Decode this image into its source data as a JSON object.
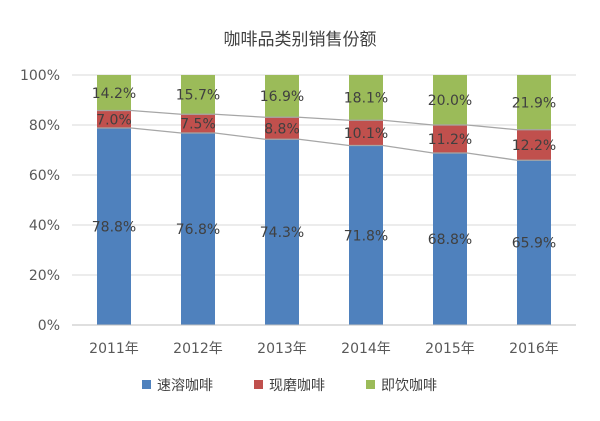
{
  "chart_data": {
    "type": "bar",
    "stacked": true,
    "title": "咖啡品类别销售份额",
    "categories": [
      "2011年",
      "2012年",
      "2013年",
      "2014年",
      "2015年",
      "2016年"
    ],
    "ylim": [
      0,
      100
    ],
    "yticks": [
      "0%",
      "20%",
      "40%",
      "60%",
      "80%",
      "100%"
    ],
    "series": [
      {
        "name": "速溶咖啡",
        "color": "#4F81BD",
        "values": [
          78.8,
          76.8,
          74.3,
          71.8,
          68.8,
          65.9
        ],
        "labels": [
          "78.8%",
          "76.8%",
          "74.3%",
          "71.8%",
          "68.8%",
          "65.9%"
        ]
      },
      {
        "name": "现磨咖啡",
        "color": "#C0504D",
        "values": [
          7.0,
          7.5,
          8.8,
          10.1,
          11.2,
          12.2
        ],
        "labels": [
          "7.0%",
          "7.5%",
          "8.8%",
          "10.1%",
          "11.2%",
          "12.2%"
        ]
      },
      {
        "name": "即饮咖啡",
        "color": "#9BBB59",
        "values": [
          14.2,
          15.7,
          16.9,
          18.1,
          20.0,
          21.9
        ],
        "labels": [
          "14.2%",
          "15.7%",
          "16.9%",
          "18.1%",
          "20.0%",
          "21.9%"
        ]
      }
    ],
    "grid": true,
    "legend": "bottom",
    "series_lines": true
  }
}
